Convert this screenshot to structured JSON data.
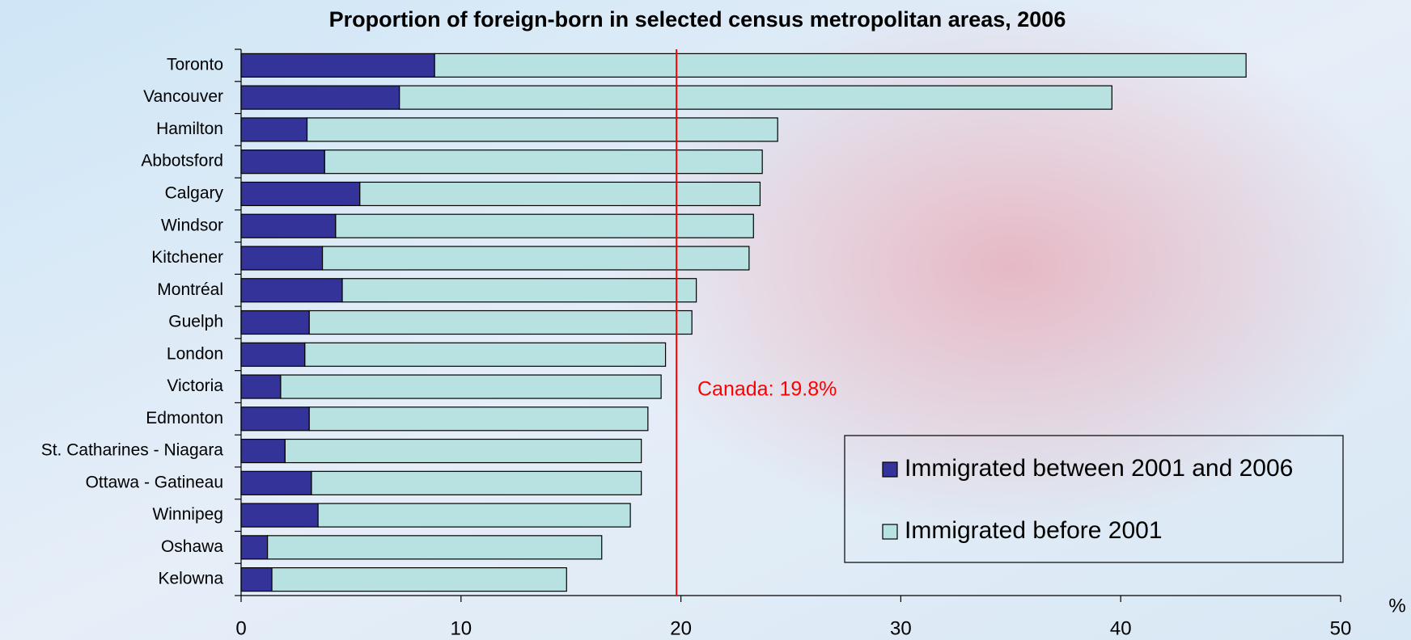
{
  "chart_data": {
    "type": "stacked-bar-horizontal",
    "title": "Proportion of foreign-born in selected census metropolitan areas, 2006",
    "categories": [
      "Toronto",
      "Vancouver",
      "Hamilton",
      "Abbotsford",
      "Calgary",
      "Windsor",
      "Kitchener",
      "Montréal",
      "Guelph",
      "London",
      "Victoria",
      "Edmonton",
      "St. Catharines - Niagara",
      "Ottawa - Gatineau",
      "Winnipeg",
      "Oshawa",
      "Kelowna"
    ],
    "series": [
      {
        "name": "Immigrated between 2001 and 2006",
        "color": "#333399",
        "values": [
          8.8,
          7.2,
          3.0,
          3.8,
          5.4,
          4.3,
          3.7,
          4.6,
          3.1,
          2.9,
          1.8,
          3.1,
          2.0,
          3.2,
          3.5,
          1.2,
          1.4
        ]
      },
      {
        "name": "Immigrated before 2001",
        "color": "#b8e2e2",
        "values": [
          36.9,
          32.4,
          21.4,
          19.9,
          18.2,
          19.0,
          19.4,
          16.1,
          17.4,
          16.4,
          17.3,
          15.4,
          16.2,
          15.0,
          14.2,
          15.2,
          13.4
        ]
      }
    ],
    "xlim": [
      0,
      50
    ],
    "xticks": [
      0,
      10,
      20,
      30,
      40,
      50
    ],
    "x_label": "%",
    "reference_line": {
      "value": 19.8,
      "label": "Canada: 19.8%",
      "color": "#ff0000"
    },
    "legend": "lower right"
  }
}
